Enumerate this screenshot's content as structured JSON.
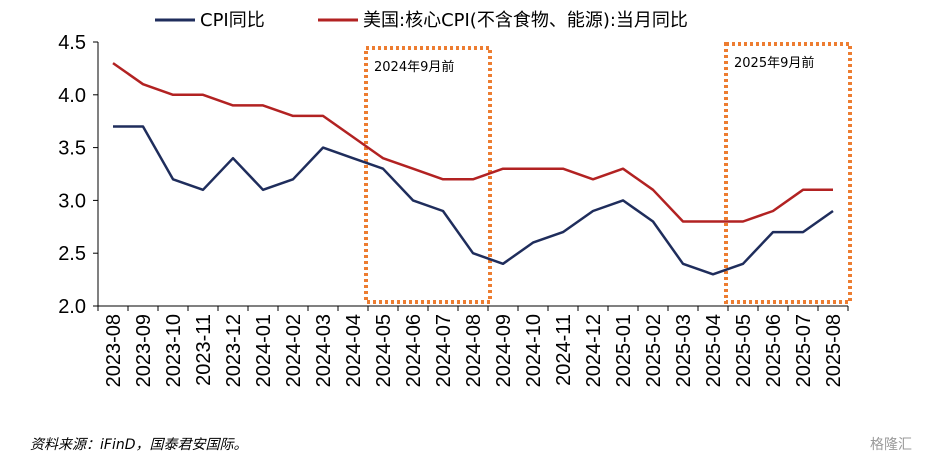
{
  "chart_data": {
    "type": "line",
    "categories": [
      "2023-08",
      "2023-09",
      "2023-10",
      "2023-11",
      "2023-12",
      "2024-01",
      "2024-02",
      "2024-03",
      "2024-04",
      "2024-05",
      "2024-06",
      "2024-07",
      "2024-08",
      "2024-09",
      "2024-10",
      "2024-11",
      "2024-12",
      "2025-01",
      "2025-02",
      "2025-03",
      "2025-04",
      "2025-05",
      "2025-06",
      "2025-07",
      "2025-08"
    ],
    "series": [
      {
        "name": "CPI同比",
        "color": "#1f2d5c",
        "values": [
          3.7,
          3.7,
          3.2,
          3.1,
          3.4,
          3.1,
          3.2,
          3.5,
          3.4,
          3.3,
          3.0,
          2.9,
          2.5,
          2.4,
          2.6,
          2.7,
          2.9,
          3.0,
          2.8,
          2.4,
          2.3,
          2.4,
          2.7,
          2.7,
          2.9
        ]
      },
      {
        "name": "美国:核心CPI(不含食物、能源):当月同比",
        "color": "#b22222",
        "values": [
          4.3,
          4.1,
          4.0,
          4.0,
          3.9,
          3.9,
          3.8,
          3.8,
          3.6,
          3.4,
          3.3,
          3.2,
          3.2,
          3.3,
          3.3,
          3.3,
          3.2,
          3.3,
          3.1,
          2.8,
          2.8,
          2.8,
          2.9,
          3.1,
          3.1
        ]
      }
    ],
    "yticks": [
      "2.0",
      "2.5",
      "3.0",
      "3.5",
      "4.0",
      "4.5"
    ],
    "ylim": [
      2.0,
      4.5
    ],
    "grid": false,
    "legend_position": "top",
    "annotations": [
      {
        "label": "2024年9月前",
        "from": "2024-05",
        "to": "2024-08",
        "color": "#ed7d31"
      },
      {
        "label": "2025年9月前",
        "from": "2025-05",
        "to": "2025-08",
        "color": "#ed7d31"
      }
    ]
  },
  "source_note": "资料来源：iFinD，国泰君安国际。",
  "watermark": "格隆汇"
}
